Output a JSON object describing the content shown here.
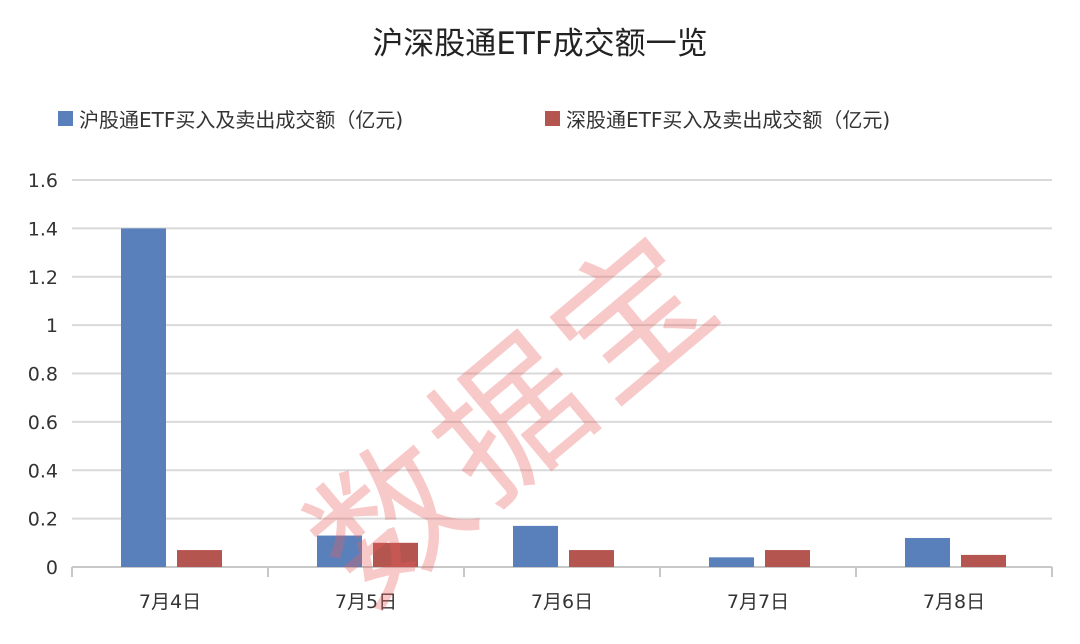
{
  "chart_data": {
    "type": "bar",
    "title": "沪深股通ETF成交额一览",
    "categories": [
      "7月4日",
      "7月5日",
      "7月6日",
      "7月7日",
      "7月8日"
    ],
    "series": [
      {
        "name": "沪股通ETF买入及卖出成交额（亿元)",
        "color": "#5a80bb",
        "values": [
          1.4,
          0.13,
          0.17,
          0.04,
          0.12
        ]
      },
      {
        "name": "深股通ETF买入及卖出成交额（亿元)",
        "color": "#b55550",
        "values": [
          0.07,
          0.1,
          0.07,
          0.07,
          0.05
        ]
      }
    ],
    "ylim": [
      0,
      1.6
    ],
    "yticks": [
      "0",
      "0.2",
      "0.4",
      "0.6",
      "0.8",
      "1",
      "1.2",
      "1.4",
      "1.6"
    ],
    "grid": true,
    "legend": "top",
    "xlabel": "",
    "ylabel": ""
  },
  "watermark": "数据宝"
}
